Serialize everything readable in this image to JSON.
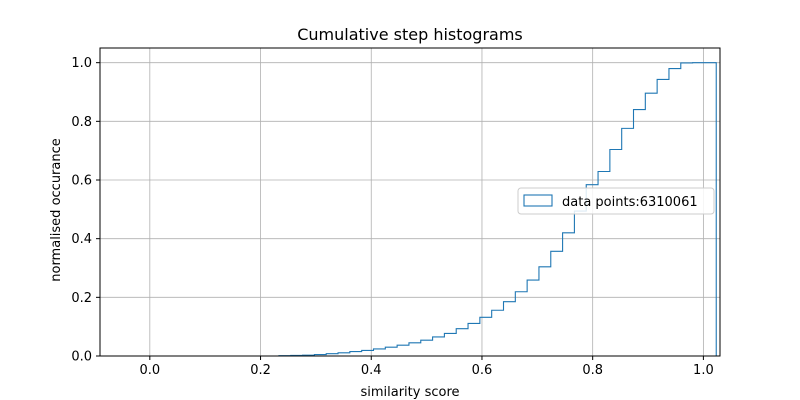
{
  "chart_data": {
    "type": "histogram-step",
    "title": "Cumulative step histograms",
    "xlabel": "similarity score",
    "ylabel": "normalised occurance",
    "xlim": [
      -0.09,
      1.03
    ],
    "ylim": [
      0.0,
      1.05
    ],
    "xticks": [
      0.0,
      0.2,
      0.4,
      0.6,
      0.8,
      1.0
    ],
    "xtick_labels": [
      "0.0",
      "0.2",
      "0.4",
      "0.6",
      "0.8",
      "1.0"
    ],
    "yticks": [
      0.0,
      0.2,
      0.4,
      0.6,
      0.8,
      1.0
    ],
    "ytick_labels": [
      "0.0",
      "0.2",
      "0.4",
      "0.6",
      "0.8",
      "1.0"
    ],
    "grid": true,
    "legend_placement": "center-right",
    "series": [
      {
        "name": "data points:6310061",
        "color": "#1f77b4",
        "bin_start": -0.087,
        "bin_width": 0.02135,
        "cumulative": [
          0,
          0,
          0,
          0,
          0,
          0,
          0,
          0,
          0,
          0,
          0,
          0,
          0,
          0,
          0,
          0.001,
          0.002,
          0.003,
          0.005,
          0.008,
          0.011,
          0.015,
          0.019,
          0.024,
          0.03,
          0.037,
          0.045,
          0.054,
          0.065,
          0.077,
          0.093,
          0.111,
          0.132,
          0.156,
          0.185,
          0.219,
          0.259,
          0.304,
          0.357,
          0.42,
          0.494,
          0.584,
          0.629,
          0.704,
          0.776,
          0.84,
          0.896,
          0.943,
          0.98,
          0.999,
          1.0,
          1.0
        ]
      }
    ]
  }
}
